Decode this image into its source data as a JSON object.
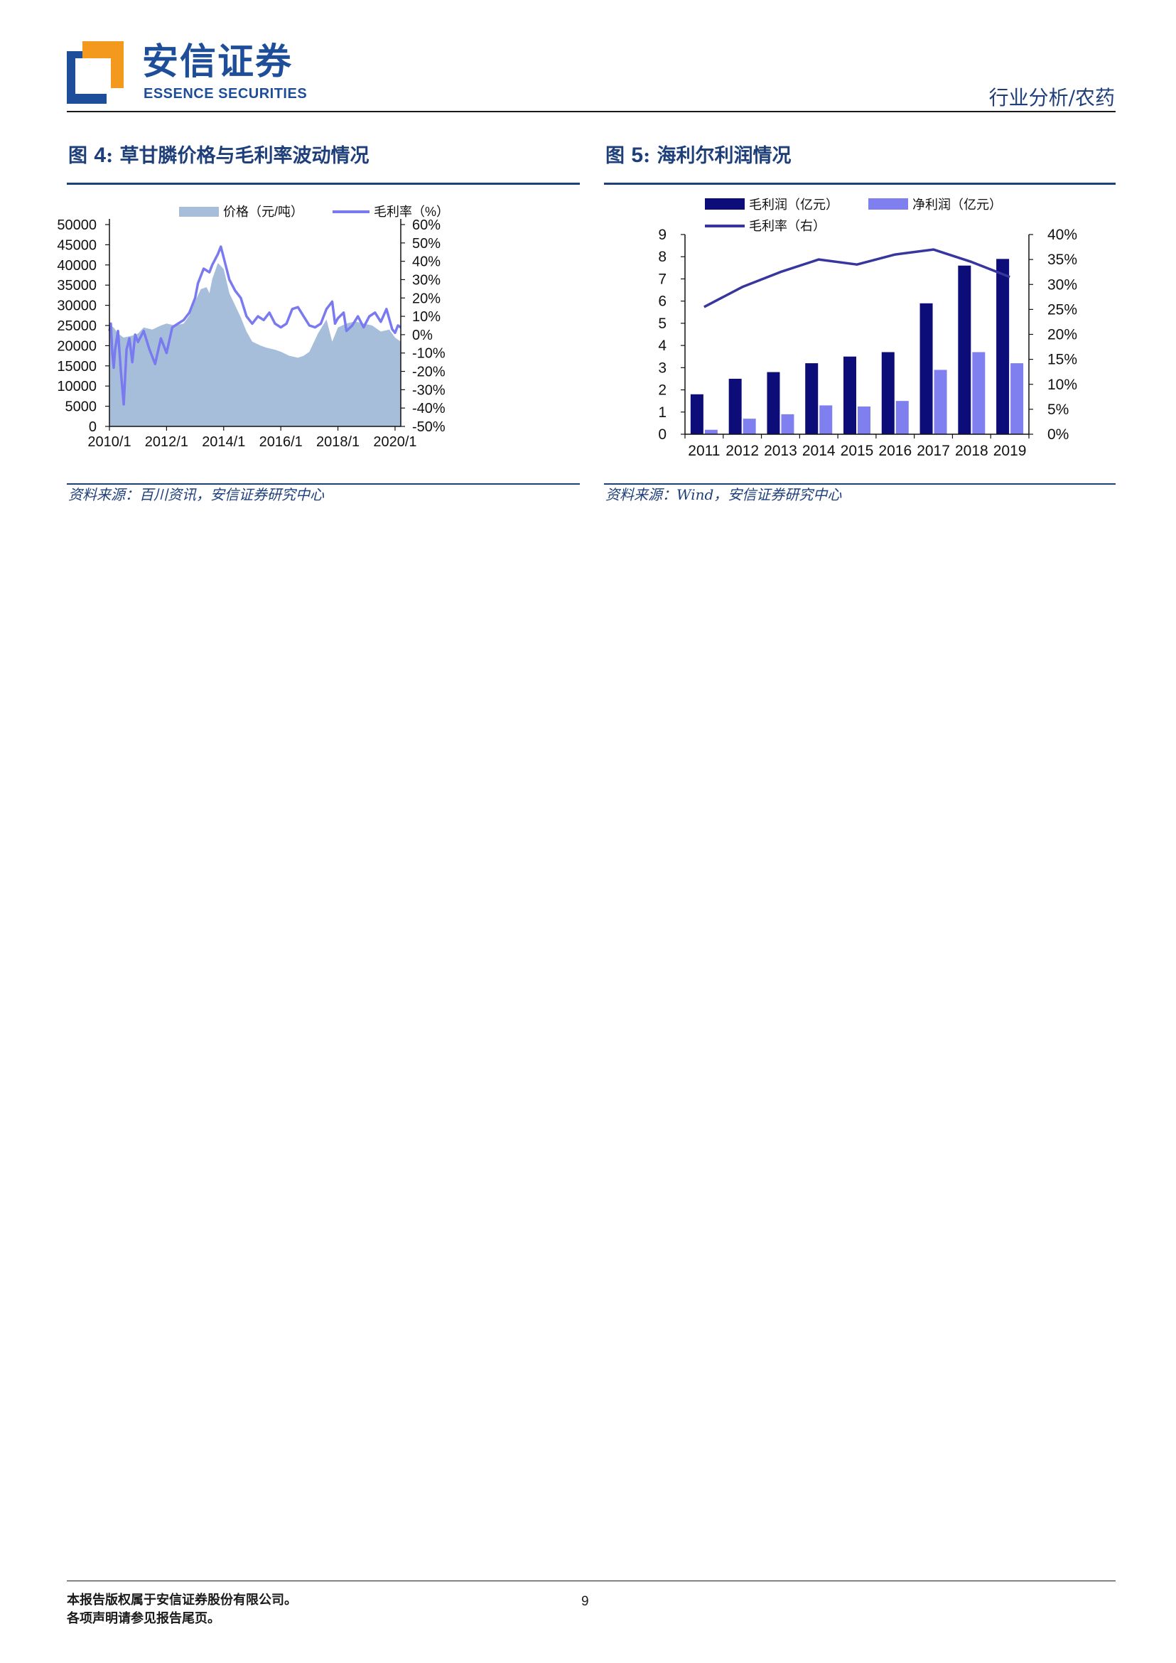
{
  "header": {
    "logo_cn": "安信证券",
    "logo_en": "ESSENCE SECURITIES",
    "section": "行业分析/农药",
    "colors": {
      "brand_blue": "#1e4e9a",
      "brand_orange": "#f39a1e"
    }
  },
  "figure4": {
    "title_prefix": "图",
    "title_num": "4",
    "title_sep": ":",
    "title_text": "草甘膦价格与毛利率波动情况",
    "source": "资料来源：百川资讯，安信证券研究中心"
  },
  "figure5": {
    "title_prefix": "图",
    "title_num": "5",
    "title_sep": ":",
    "title_text": "海利尔利润情况",
    "source": "资料来源：Wind，安信证券研究中心"
  },
  "footer": {
    "line1": "本报告版权属于安信证券股份有限公司。",
    "line2": "各项声明请参见报告尾页。",
    "page_number": "9"
  },
  "chart_data": [
    {
      "type": "area",
      "legend": [
        "价格（元/吨）",
        "毛利率（%）"
      ],
      "legend_placement": "top",
      "x_tick_labels": [
        "2010/1",
        "2012/1",
        "2014/1",
        "2016/1",
        "2018/1",
        "2020/1"
      ],
      "y_left": {
        "ylim": [
          0,
          50000
        ],
        "ticks": [
          "50000",
          "45000",
          "40000",
          "35000",
          "30000",
          "25000",
          "20000",
          "15000",
          "10000",
          "5000",
          "0"
        ]
      },
      "y_right": {
        "ylim": [
          -50,
          60
        ],
        "ticks": [
          "60%",
          "50%",
          "40%",
          "30%",
          "20%",
          "10%",
          "0%",
          "-10%",
          "-20%",
          "-30%",
          "-40%",
          "-50%"
        ]
      },
      "series": [
        {
          "name": "价格（元/吨）",
          "kind": "area",
          "axis": "left",
          "color": "#a7bedb",
          "x": [
            2010.0,
            2010.15,
            2010.3,
            2010.5,
            2010.8,
            2011.0,
            2011.2,
            2011.5,
            2011.8,
            2012.0,
            2012.3,
            2012.6,
            2012.8,
            2013.0,
            2013.2,
            2013.4,
            2013.5,
            2013.6,
            2013.8,
            2014.0,
            2014.2,
            2014.4,
            2014.6,
            2014.8,
            2015.0,
            2015.3,
            2015.5,
            2015.8,
            2016.0,
            2016.3,
            2016.6,
            2016.8,
            2017.0,
            2017.3,
            2017.6,
            2017.8,
            2018.0,
            2018.3,
            2018.6,
            2018.9,
            2019.2,
            2019.5,
            2019.8,
            2020.0,
            2020.2
          ],
          "values": [
            25000,
            24500,
            23000,
            22000,
            22500,
            23000,
            24500,
            24000,
            25000,
            25500,
            25000,
            25500,
            27500,
            31000,
            34000,
            34500,
            33000,
            36500,
            40500,
            39000,
            33000,
            30000,
            27000,
            23500,
            21000,
            20000,
            19500,
            19000,
            18500,
            17500,
            17000,
            17500,
            18500,
            23000,
            26500,
            21000,
            24500,
            25500,
            26000,
            25500,
            25000,
            23500,
            24000,
            22000,
            21000
          ]
        },
        {
          "name": "毛利率（%）",
          "kind": "line",
          "axis": "right",
          "color": "#7a7af0",
          "x": [
            2010.0,
            2010.05,
            2010.1,
            2010.15,
            2010.2,
            2010.3,
            2010.4,
            2010.5,
            2010.6,
            2010.7,
            2010.8,
            2010.9,
            2011.0,
            2011.2,
            2011.4,
            2011.6,
            2011.8,
            2012.0,
            2012.2,
            2012.4,
            2012.6,
            2012.8,
            2013.0,
            2013.1,
            2013.3,
            2013.5,
            2013.6,
            2013.8,
            2013.9,
            2014.0,
            2014.1,
            2014.2,
            2014.4,
            2014.6,
            2014.8,
            2015.0,
            2015.2,
            2015.4,
            2015.6,
            2015.8,
            2016.0,
            2016.2,
            2016.4,
            2016.6,
            2016.8,
            2017.0,
            2017.2,
            2017.4,
            2017.6,
            2017.8,
            2017.9,
            2018.0,
            2018.2,
            2018.3,
            2018.5,
            2018.7,
            2018.9,
            2019.1,
            2019.3,
            2019.5,
            2019.7,
            2019.9,
            2020.0,
            2020.1,
            2020.2
          ],
          "values": [
            2,
            6,
            -10,
            -18,
            -8,
            2,
            -20,
            -38,
            -8,
            -2,
            -15,
            0,
            -4,
            2,
            -8,
            -16,
            -2,
            -10,
            4,
            6,
            8,
            12,
            20,
            28,
            36,
            34,
            38,
            44,
            48,
            42,
            36,
            30,
            24,
            20,
            10,
            6,
            10,
            8,
            12,
            6,
            4,
            6,
            14,
            15,
            10,
            5,
            4,
            6,
            14,
            18,
            6,
            9,
            12,
            2,
            5,
            10,
            4,
            10,
            12,
            7,
            14,
            3,
            1,
            5,
            4
          ]
        }
      ]
    },
    {
      "type": "bar",
      "legend": [
        "毛利润（亿元）",
        "净利润（亿元）",
        "毛利率（右）"
      ],
      "legend_placement": "top",
      "categories": [
        "2011",
        "2012",
        "2013",
        "2014",
        "2015",
        "2016",
        "2017",
        "2018",
        "2019"
      ],
      "y_left": {
        "ylim": [
          0,
          9
        ],
        "ticks": [
          "9",
          "8",
          "7",
          "6",
          "5",
          "4",
          "3",
          "2",
          "1",
          "0"
        ]
      },
      "y_right": {
        "ylim": [
          0,
          40
        ],
        "ticks": [
          "40%",
          "35%",
          "30%",
          "25%",
          "20%",
          "15%",
          "10%",
          "5%",
          "0%"
        ]
      },
      "series": [
        {
          "name": "毛利润（亿元）",
          "kind": "bar",
          "axis": "left",
          "color": "#0d0d7a",
          "values": [
            1.8,
            2.5,
            2.8,
            3.2,
            3.5,
            3.7,
            5.9,
            7.6,
            7.9
          ]
        },
        {
          "name": "净利润（亿元）",
          "kind": "bar",
          "axis": "left",
          "color": "#7f7ff0",
          "values": [
            0.2,
            0.7,
            0.9,
            1.3,
            1.25,
            1.5,
            2.9,
            3.7,
            3.2
          ]
        },
        {
          "name": "毛利率（右）",
          "kind": "line",
          "axis": "right",
          "color": "#36369e",
          "values": [
            25.5,
            29.5,
            32.5,
            35.0,
            34.0,
            36.0,
            37.0,
            34.5,
            31.5
          ]
        }
      ]
    }
  ]
}
